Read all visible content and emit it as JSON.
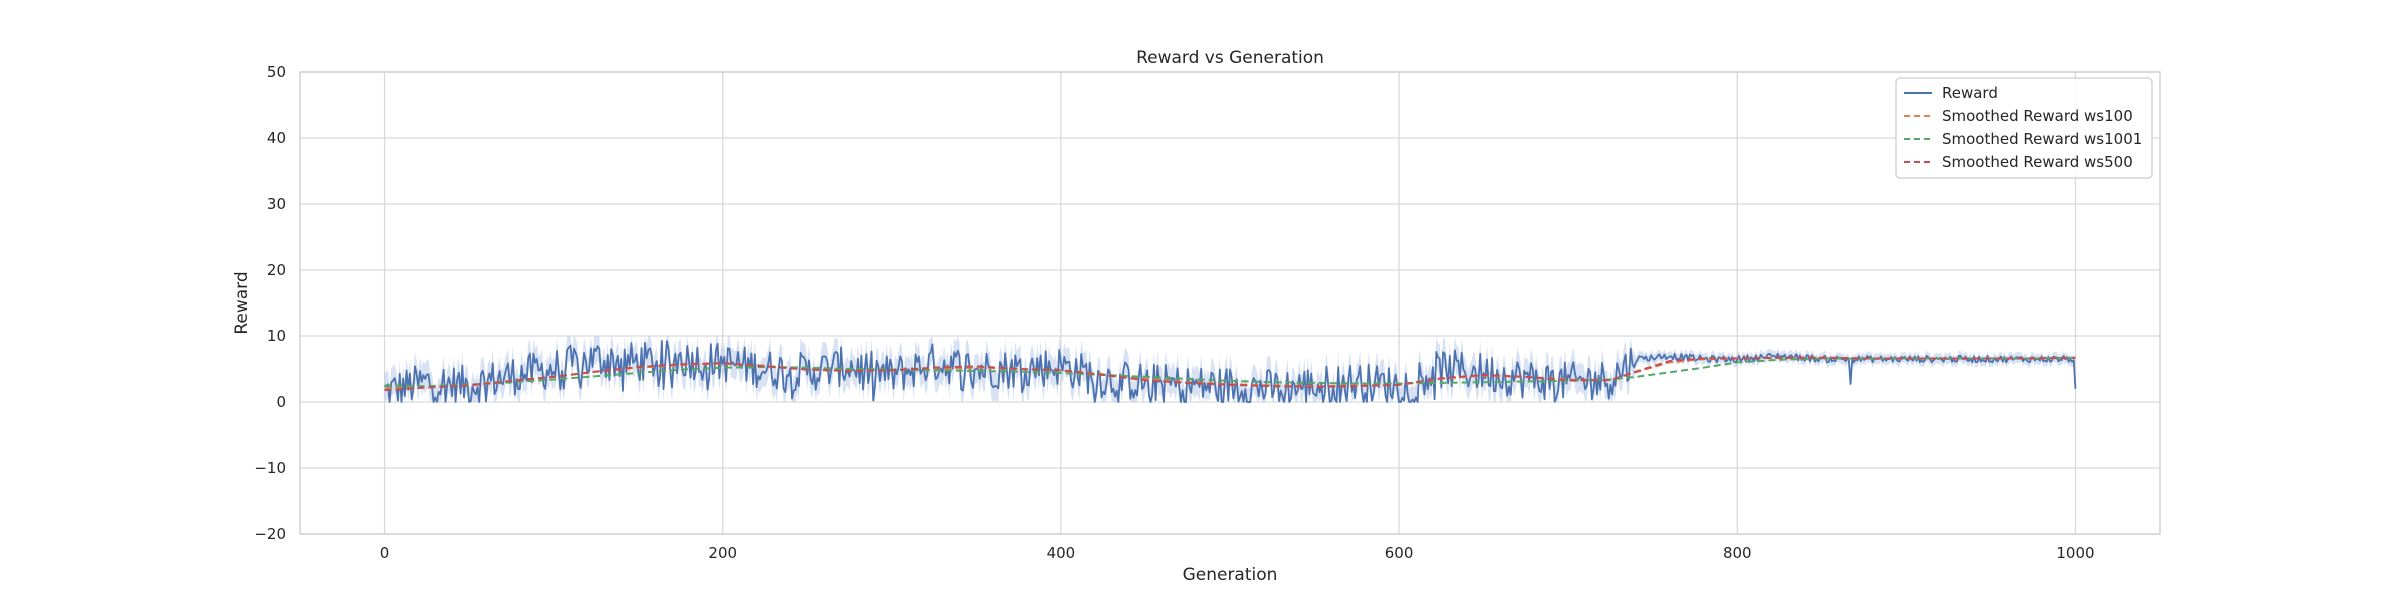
{
  "chart_data": {
    "type": "line",
    "title": "Reward vs Generation",
    "xlabel": "Generation",
    "ylabel": "Reward",
    "xlim": [
      -50,
      1050
    ],
    "ylim": [
      -20,
      50
    ],
    "xticks": [
      0,
      200,
      400,
      600,
      800,
      1000
    ],
    "yticks": [
      -20,
      -10,
      0,
      10,
      20,
      30,
      40,
      50
    ],
    "grid": true,
    "legend_position": "top-right",
    "series": [
      {
        "name": "Reward",
        "style": "solid",
        "color": "#4c72b0",
        "band_color": "#a9bfe3",
        "note": "noisy raw reward; values sampled every 25 generations (approximate)",
        "x": [
          0,
          25,
          50,
          75,
          100,
          125,
          150,
          175,
          200,
          225,
          250,
          275,
          300,
          325,
          350,
          375,
          400,
          425,
          450,
          475,
          500,
          525,
          550,
          575,
          600,
          625,
          650,
          675,
          700,
          725,
          740,
          760,
          780,
          800,
          825,
          850,
          875,
          900,
          925,
          950,
          975,
          1000
        ],
        "values": [
          1.5,
          3.0,
          2.5,
          4.0,
          5.0,
          6.5,
          6.0,
          6.5,
          6.0,
          5.0,
          4.5,
          5.5,
          4.0,
          6.0,
          5.0,
          5.0,
          5.5,
          3.5,
          3.0,
          2.5,
          2.5,
          2.0,
          2.5,
          3.0,
          2.5,
          5.0,
          4.5,
          3.5,
          3.0,
          3.5,
          6.5,
          7.0,
          6.5,
          6.5,
          7.0,
          6.5,
          6.5,
          6.5,
          6.5,
          6.5,
          6.5,
          6.5
        ]
      },
      {
        "name": "Smoothed Reward ws100",
        "style": "dashed",
        "color": "#dd8452",
        "x": [
          0,
          25,
          50,
          75,
          100,
          125,
          150,
          175,
          200,
          225,
          250,
          275,
          300,
          325,
          350,
          375,
          400,
          425,
          450,
          475,
          500,
          525,
          550,
          575,
          600,
          625,
          650,
          675,
          700,
          725,
          740,
          760,
          780,
          800,
          825,
          850,
          875,
          900,
          925,
          950,
          975,
          1000
        ],
        "values": [
          2.0,
          2.3,
          2.6,
          3.2,
          3.8,
          4.6,
          5.2,
          5.6,
          5.8,
          5.5,
          5.0,
          4.8,
          4.8,
          5.0,
          5.2,
          5.0,
          4.8,
          4.2,
          3.5,
          3.0,
          2.7,
          2.5,
          2.4,
          2.5,
          2.6,
          3.5,
          4.0,
          3.8,
          3.4,
          3.3,
          4.5,
          6.0,
          6.5,
          6.6,
          6.7,
          6.7,
          6.6,
          6.6,
          6.6,
          6.6,
          6.6,
          6.7
        ]
      },
      {
        "name": "Smoothed Reward ws1001",
        "style": "dashed",
        "color": "#55a868",
        "x": [
          0,
          25,
          50,
          75,
          100,
          125,
          150,
          175,
          200,
          225,
          250,
          275,
          300,
          325,
          350,
          375,
          400,
          425,
          450,
          475,
          500,
          525,
          550,
          575,
          600,
          625,
          650,
          675,
          700,
          725,
          740,
          760,
          780,
          800,
          825,
          850,
          875,
          900,
          925,
          950,
          975,
          1000
        ],
        "values": [
          2.5,
          2.4,
          2.6,
          3.0,
          3.4,
          3.9,
          4.4,
          4.9,
          5.2,
          5.3,
          5.2,
          5.0,
          4.9,
          4.8,
          4.7,
          4.6,
          4.4,
          4.1,
          3.8,
          3.5,
          3.2,
          3.0,
          2.9,
          2.8,
          2.8,
          2.9,
          3.0,
          3.1,
          3.2,
          3.4,
          3.8,
          4.5,
          5.2,
          6.0,
          6.4,
          6.6,
          6.6,
          6.6,
          6.6,
          6.6,
          6.6,
          6.7
        ]
      },
      {
        "name": "Smoothed Reward ws500",
        "style": "dashed",
        "color": "#c44e52",
        "x": [
          0,
          25,
          50,
          75,
          100,
          125,
          150,
          175,
          200,
          225,
          250,
          275,
          300,
          325,
          350,
          375,
          400,
          425,
          450,
          475,
          500,
          525,
          550,
          575,
          600,
          625,
          650,
          675,
          700,
          725,
          740,
          760,
          780,
          800,
          825,
          850,
          875,
          900,
          925,
          950,
          975,
          1000
        ],
        "values": [
          1.8,
          2.2,
          2.5,
          3.2,
          3.8,
          4.6,
          5.3,
          5.7,
          5.9,
          5.4,
          4.9,
          4.7,
          4.8,
          5.2,
          5.4,
          5.0,
          4.8,
          4.1,
          3.3,
          2.9,
          2.6,
          2.4,
          2.3,
          2.4,
          2.6,
          3.6,
          4.1,
          3.8,
          3.3,
          3.3,
          4.6,
          6.2,
          6.6,
          6.6,
          6.7,
          6.7,
          6.6,
          6.6,
          6.6,
          6.6,
          6.6,
          6.7
        ]
      }
    ]
  }
}
